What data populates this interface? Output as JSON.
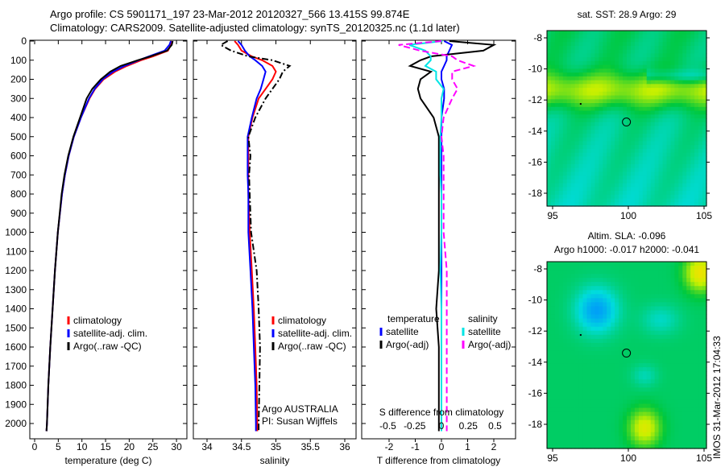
{
  "title_line1": "Argo profile: CS 5901171_197 23-Mar-2012 20120327_566 13.415S 99.874E",
  "title_line2": "Climatology: CARS2009. Satellite-adjusted climatology: synTS_20120325.nc (1.1d later)",
  "colors": {
    "climatology": "#ff0000",
    "satellite": "#0000ff",
    "argo": "#000000",
    "sal_satellite": "#00e5e5",
    "sal_argo": "#ff00ff"
  },
  "chart_data": [
    {
      "type": "line",
      "name": "temperature",
      "xlabel": "temperature (deg C)",
      "xlim": [
        -1,
        31
      ],
      "xticks": [
        0,
        5,
        10,
        15,
        20,
        25,
        30
      ],
      "ylim": [
        2060,
        0
      ],
      "yticks": [
        0,
        100,
        200,
        300,
        400,
        500,
        600,
        700,
        800,
        900,
        1000,
        1100,
        1200,
        1300,
        1400,
        1500,
        1600,
        1700,
        1800,
        1900,
        2000
      ],
      "depth": [
        0,
        20,
        50,
        80,
        100,
        130,
        160,
        200,
        250,
        300,
        400,
        500,
        600,
        700,
        800,
        1000,
        1200,
        1400,
        1600,
        1800,
        2000,
        2040
      ],
      "series": [
        {
          "name": "climatology",
          "color": "#ff0000",
          "values": [
            29,
            28.8,
            28.2,
            25,
            22.5,
            19.5,
            17,
            14.6,
            12.8,
            11.6,
            9.8,
            8.3,
            7.2,
            6.4,
            5.8,
            4.9,
            4.3,
            3.8,
            3.3,
            2.9,
            2.6,
            2.5
          ]
        },
        {
          "name": "satellite-adj. clim.",
          "color": "#0000ff",
          "values": [
            28.8,
            28.5,
            27.5,
            24.2,
            22,
            19,
            16.6,
            14.4,
            12.7,
            11.5,
            9.8,
            8.3,
            7.2,
            6.4,
            5.8,
            4.9,
            4.3,
            3.8,
            3.3,
            2.9,
            2.6,
            2.5
          ]
        },
        {
          "name": "Argo(..raw -QC)",
          "color": "#000000",
          "values": [
            29.2,
            29,
            28,
            24.5,
            21.8,
            18.2,
            16,
            14,
            12.2,
            11,
            9.6,
            8.2,
            7.1,
            6.3,
            5.7,
            4.9,
            4.3,
            3.8,
            3.3,
            2.9,
            2.6,
            2.5
          ]
        }
      ],
      "legend": [
        "climatology",
        "satellite-adj. clim.",
        "Argo(..raw -QC)"
      ]
    },
    {
      "type": "line",
      "name": "salinity",
      "xlabel": "salinity",
      "xlim": [
        33.8,
        36.1
      ],
      "xticks": [
        34,
        34.5,
        35,
        35.5,
        36
      ],
      "depth": [
        0,
        20,
        50,
        80,
        100,
        130,
        160,
        200,
        250,
        300,
        400,
        500,
        600,
        700,
        800,
        1000,
        1200,
        1400,
        1600,
        1800,
        2000,
        2040
      ],
      "series": [
        {
          "name": "climatology",
          "color": "#ff0000",
          "values": [
            34.4,
            34.45,
            34.5,
            34.65,
            34.8,
            34.95,
            35.0,
            34.95,
            34.85,
            34.75,
            34.66,
            34.6,
            34.6,
            34.6,
            34.6,
            34.62,
            34.65,
            34.68,
            34.7,
            34.72,
            34.73,
            34.73
          ]
        },
        {
          "name": "satellite-adj. clim.",
          "color": "#0000ff",
          "values": [
            34.45,
            34.5,
            34.55,
            34.62,
            34.7,
            34.8,
            34.85,
            34.82,
            34.78,
            34.72,
            34.65,
            34.59,
            34.59,
            34.59,
            34.6,
            34.6,
            34.63,
            34.66,
            34.68,
            34.7,
            34.71,
            34.71
          ]
        },
        {
          "name": "Argo(..raw -QC)",
          "color": "#000000",
          "values": [
            34.3,
            34.2,
            34.35,
            34.6,
            34.95,
            35.2,
            35.1,
            35.05,
            34.95,
            34.85,
            34.7,
            34.6,
            34.63,
            34.61,
            34.62,
            34.64,
            34.72,
            34.75,
            34.77,
            34.76,
            34.75,
            34.75
          ]
        }
      ],
      "legend": [
        "climatology",
        "satellite-adj. clim.",
        "Argo(..raw -QC)"
      ],
      "annotation": [
        "Argo AUSTRALIA",
        "PI: Susan Wijffels"
      ]
    },
    {
      "type": "line",
      "name": "difference",
      "xlabel": "T difference from climatology",
      "xlabel2": "S difference from climatology",
      "xlim": [
        -3,
        3
      ],
      "xticks": [
        -2,
        -1,
        0,
        1,
        2
      ],
      "xticks2": [
        -0.5,
        -0.25,
        0,
        0.25,
        0.5
      ],
      "depth": [
        0,
        20,
        50,
        80,
        100,
        130,
        160,
        200,
        250,
        300,
        400,
        500,
        600,
        700,
        800,
        1000,
        1200,
        1400,
        1600,
        1800,
        2000,
        2040
      ],
      "series": [
        {
          "name": "temperature satellite",
          "color": "#0000ff",
          "values": [
            0.1,
            0.4,
            0.3,
            0.2,
            0.2,
            0.1,
            0,
            0,
            0.1,
            0.1,
            0,
            0,
            0,
            0,
            0,
            0,
            0,
            0,
            0,
            0,
            0,
            0
          ]
        },
        {
          "name": "temperature Argo(-adj)",
          "color": "#000000",
          "values": [
            0.3,
            2.0,
            1.6,
            -0.4,
            -0.8,
            -1.2,
            -0.4,
            -0.8,
            -0.9,
            -0.8,
            -0.3,
            -0.1,
            -0.1,
            -0.1,
            -0.1,
            -0.1,
            -0.1,
            -0.2,
            -0.1,
            -0.1,
            -0.1,
            -0.1
          ]
        },
        {
          "name": "salinity satellite",
          "color": "#00e5e5",
          "values": [
            0.01,
            -0.3,
            -0.15,
            -0.1,
            -0.1,
            -0.15,
            -0.05,
            -0.05,
            0.02,
            0.0,
            0,
            -0.01,
            -0.01,
            -0.01,
            0,
            0,
            -0.01,
            0,
            0,
            0,
            0,
            0
          ]
        },
        {
          "name": "salinity Argo(-adj)",
          "color": "#ff00ff",
          "values": [
            0.0,
            -0.4,
            -0.2,
            0.1,
            0.15,
            0.3,
            0.1,
            0.1,
            0.15,
            0.1,
            0.02,
            0.0,
            0.02,
            0.02,
            0.02,
            0.02,
            0.05,
            0.05,
            0.05,
            0.05,
            0.05,
            0.05
          ]
        }
      ],
      "legend": {
        "temperature_title": "temperature",
        "salinity_title": "salinity",
        "temp_sat": "satellite",
        "temp_argo": "Argo(-adj)",
        "sal_sat": "satellite",
        "sal_argo": "Argo(-adj)"
      }
    },
    {
      "type": "heatmap",
      "name": "sst-map",
      "title": "sat. SST: 28.9  Argo: 29",
      "xticks": [
        95,
        100,
        105
      ],
      "yticks": [
        -8,
        -10,
        -12,
        -14,
        -16,
        -18
      ],
      "float_position": {
        "lon": 99.874,
        "lat": -13.415
      }
    },
    {
      "type": "heatmap",
      "name": "sla-map",
      "title_line1": "Altim. SLA: -0.096",
      "title_line2": "Argo h1000: -0.017  h2000: -0.041",
      "xticks": [
        95,
        100,
        105
      ],
      "yticks": [
        -8,
        -10,
        -12,
        -14,
        -16,
        -18
      ],
      "float_position": {
        "lon": 99.874,
        "lat": -13.415
      }
    }
  ],
  "timestamp": "IMOS 31-Mar-2012 17:04:33"
}
